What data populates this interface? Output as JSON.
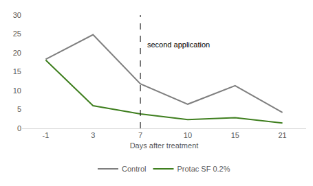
{
  "chart_data": {
    "type": "line",
    "categories": [
      "-1",
      "3",
      "7",
      "10",
      "15",
      "21"
    ],
    "x_label": "Days after treatment",
    "series": [
      {
        "name": "Control",
        "color": "#7f7f7f",
        "values": [
          18.3,
          24.8,
          11.8,
          6.4,
          11.3,
          4.2
        ]
      },
      {
        "name": "Protac SF 0.2%",
        "color": "#3f7f1f",
        "values": [
          18.1,
          6.0,
          3.8,
          2.3,
          2.8,
          1.4
        ]
      }
    ],
    "ylim": [
      0,
      30
    ],
    "yticks": [
      0,
      5,
      10,
      15,
      20,
      25,
      30
    ],
    "grid": false,
    "legend": "bottom",
    "annotations": [
      {
        "text": "second application",
        "x": "7",
        "line_style": "dashed"
      }
    ]
  }
}
